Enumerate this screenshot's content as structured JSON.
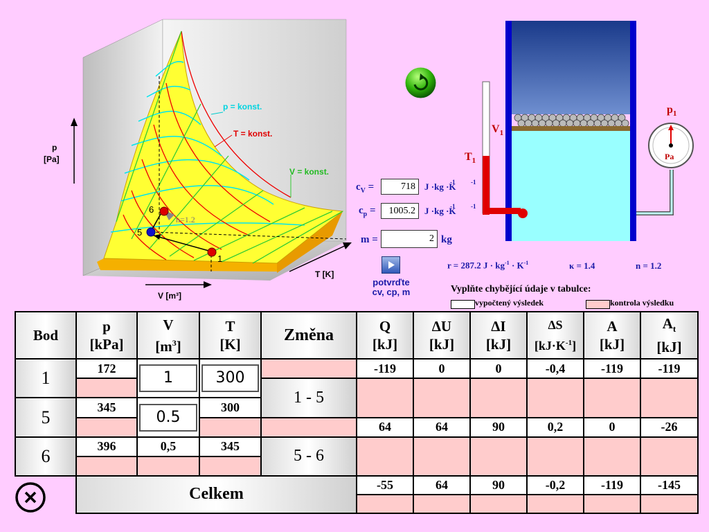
{
  "diagram": {
    "axis_p": "p\n[Pa]",
    "axis_p1": "p",
    "axis_p2": "[Pa]",
    "axis_v": "V [m³]",
    "axis_t": "T [K]",
    "label_p_const": "p = konst.",
    "label_t_const": "T = konst.",
    "label_v_const": "V = konst.",
    "point_1": "1",
    "point_5": "5",
    "point_6": "6",
    "label_n": "n=1.2"
  },
  "apparatus": {
    "label_v1": "V",
    "label_v1_sub": "1",
    "label_t1": "T",
    "label_t1_sub": "1",
    "label_p1": "p",
    "label_p1_sub": "1",
    "gauge_unit": "Pa"
  },
  "params": {
    "cv_label": "c",
    "cv_sub": "V",
    "cv_value": "718",
    "cv_unit": "J ·kg ·K",
    "cp_label": "c",
    "cp_sub": "p",
    "cp_value": "1005.2",
    "cp_unit": "J ·kg ·K",
    "m_label": "m =",
    "m_value": "2",
    "m_unit": "kg",
    "eq": "=",
    "r_text": "r = 287.2  J · kg",
    "r_unit_tail": "· K",
    "kappa_text": "κ = 1.4",
    "n_text": "n = 1.2",
    "exp_neg1": "-1"
  },
  "confirm": {
    "line1": "potvrďte",
    "line2": "cv, cp, m"
  },
  "legend": {
    "title": "Vyplňte chybějící údaje v tabulce:",
    "computed": "vypočtený výsledek",
    "check": "kontrola výsledku"
  },
  "colors": {
    "surface": "#ffff33",
    "p_const": "#00ffff",
    "t_const": "#ff0000",
    "v_const": "#33cc33",
    "background": "#ffccff",
    "check_fill": "#ffcccc"
  },
  "table": {
    "headers": {
      "bod": "Bod",
      "p": "p",
      "p_unit": "[kPa]",
      "v": "V",
      "v_unit": "[m",
      "v_unit_sup": "3",
      "v_unit_close": "]",
      "t": "T",
      "t_unit": "[K]",
      "zmena": "Změna",
      "q": "Q",
      "q_unit": "[kJ]",
      "du": "∆U",
      "du_unit": "[kJ]",
      "di": "∆I",
      "di_unit": "[kJ]",
      "ds": "∆S",
      "ds_unit": "[kJ·K",
      "ds_unit_sup": "-1",
      "ds_unit_close": "]",
      "a": "A",
      "a_unit": "[kJ]",
      "at": "A",
      "at_sub": "t",
      "at_unit": "[kJ]"
    },
    "points": [
      {
        "bod": "1",
        "p": "172",
        "v": "1",
        "t": "300"
      },
      {
        "bod": "5",
        "p": "345",
        "v": "0.5",
        "t": "300"
      },
      {
        "bod": "6",
        "p": "396",
        "v": "0,5",
        "t": "345"
      }
    ],
    "changes": [
      {
        "label": "1 - 5",
        "q": "-119",
        "du": "0",
        "di": "0",
        "ds": "-0,4",
        "a": "-119",
        "at": "-119"
      },
      {
        "label": "5 - 6",
        "q": "64",
        "du": "64",
        "di": "90",
        "ds": "0,2",
        "a": "0",
        "at": "-26"
      }
    ],
    "total": {
      "label": "Celkem",
      "q": "-55",
      "du": "64",
      "di": "90",
      "ds": "-0,2",
      "a": "-119",
      "at": "-145"
    }
  }
}
